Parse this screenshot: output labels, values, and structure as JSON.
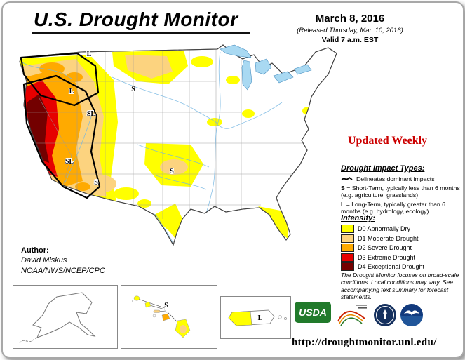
{
  "header": {
    "title": "U.S. Drought Monitor",
    "date": "March 8, 2016",
    "released": "(Released Thursday, Mar. 10, 2016)",
    "valid": "Valid 7 a.m. EST"
  },
  "updated_weekly": "Updated Weekly",
  "author": {
    "label": "Author:",
    "name": "David Miskus",
    "org": "NOAA/NWS/NCEP/CPC"
  },
  "impact_types": {
    "heading": "Drought Impact Types:",
    "delineates": "Delineates dominant impacts",
    "short_prefix": "S",
    "short_text": "= Short-Term, typically less than 6 months (e.g. agriculture, grasslands)",
    "long_prefix": "L",
    "long_text": "= Long-Term, typically greater than 6 months (e.g. hydrology, ecology)"
  },
  "intensity": {
    "heading": "Intensity:",
    "levels": [
      {
        "code": "D0",
        "label": "D0 Abnormally Dry",
        "color": "#FFFF00"
      },
      {
        "code": "D1",
        "label": "D1 Moderate Drought",
        "color": "#FCD37F"
      },
      {
        "code": "D2",
        "label": "D2 Severe Drought",
        "color": "#FFAA00"
      },
      {
        "code": "D3",
        "label": "D3 Extreme Drought",
        "color": "#E60000"
      },
      {
        "code": "D4",
        "label": "D4 Exceptional Drought",
        "color": "#730000"
      }
    ]
  },
  "disclaimer": "The Drought Monitor focuses on broad-scale conditions. Local conditions may vary. See accompanying text summary for forecast statements.",
  "url": "http://droughtmonitor.unl.edu/",
  "map_labels": [
    {
      "text": "L",
      "region": "washington"
    },
    {
      "text": "S",
      "region": "montana"
    },
    {
      "text": "L",
      "region": "northern-california"
    },
    {
      "text": "SL",
      "region": "nevada"
    },
    {
      "text": "SL",
      "region": "southern-california"
    },
    {
      "text": "S",
      "region": "arizona"
    },
    {
      "text": "S",
      "region": "southern-plains"
    }
  ],
  "insets": {
    "hawaii_label": "S",
    "puerto_rico_label": "L"
  },
  "logos": {
    "usda": "USDA"
  },
  "colors": {
    "updated_weekly": "#CC0000",
    "usda_green": "#217A2B",
    "water": "#A9D9F2"
  }
}
